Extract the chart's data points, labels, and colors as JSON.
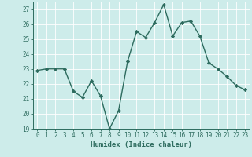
{
  "x": [
    0,
    1,
    2,
    3,
    4,
    5,
    6,
    7,
    8,
    9,
    10,
    11,
    12,
    13,
    14,
    15,
    16,
    17,
    18,
    19,
    20,
    21,
    22,
    23
  ],
  "y": [
    22.9,
    23.0,
    23.0,
    23.0,
    21.5,
    21.1,
    22.2,
    21.2,
    19.0,
    20.2,
    23.5,
    25.5,
    25.1,
    26.1,
    27.3,
    25.2,
    26.1,
    26.2,
    25.2,
    23.4,
    23.0,
    22.5,
    21.9,
    21.6
  ],
  "line_color": "#2d6b5e",
  "marker": "D",
  "markersize": 2.2,
  "linewidth": 1.0,
  "bg_color": "#cdecea",
  "grid_color": "#ffffff",
  "xlabel": "Humidex (Indice chaleur)",
  "ylim": [
    19,
    27.5
  ],
  "xlim": [
    -0.5,
    23.5
  ],
  "yticks": [
    19,
    20,
    21,
    22,
    23,
    24,
    25,
    26,
    27
  ],
  "xticks": [
    0,
    1,
    2,
    3,
    4,
    5,
    6,
    7,
    8,
    9,
    10,
    11,
    12,
    13,
    14,
    15,
    16,
    17,
    18,
    19,
    20,
    21,
    22,
    23
  ],
  "tick_color": "#2d6b5e",
  "tick_fontsize": 5.5,
  "xlabel_fontsize": 6.5
}
